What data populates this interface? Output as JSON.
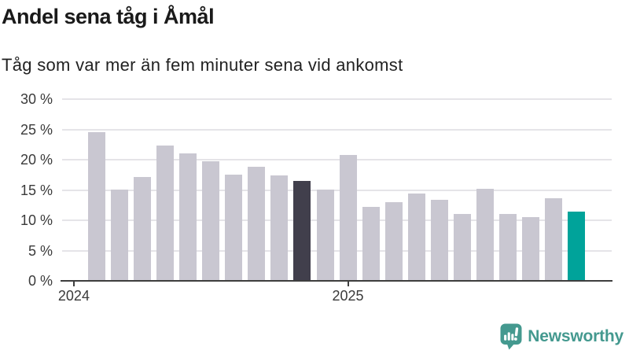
{
  "header": {
    "title": "Andel sena tåg i Åmål",
    "subtitle": "Tåg som var mer än fem minuter sena vid ankomst"
  },
  "footer": {
    "brand": "Newsworthy",
    "brand_color": "#44998F",
    "icon": "bar-chart-speech-bubble-icon"
  },
  "chart_data": {
    "type": "bar",
    "title": "Andel sena tåg i Åmål",
    "subtitle": "Tåg som var mer än fem minuter sena vid ankomst",
    "unit": "%",
    "categories": [
      "2024-02",
      "2024-03",
      "2024-04",
      "2024-05",
      "2024-06",
      "2024-07",
      "2024-08",
      "2024-09",
      "2024-10",
      "2024-11",
      "2024-12",
      "2025-01",
      "2025-02",
      "2025-03",
      "2025-04",
      "2025-05",
      "2025-06",
      "2025-07",
      "2025-08",
      "2025-09",
      "2025-10",
      "2025-11"
    ],
    "values": [
      24.5,
      15.1,
      17.2,
      22.3,
      21.1,
      19.8,
      17.5,
      18.8,
      17.4,
      16.5,
      15.1,
      20.8,
      12.2,
      13.0,
      14.4,
      13.4,
      11.0,
      15.2,
      11.0,
      10.5,
      13.6,
      11.4
    ],
    "highlights": {
      "dark": {
        "index": 9,
        "color": "#413F4C"
      },
      "latest": {
        "index": 21,
        "color": "#00A39A"
      }
    },
    "colors": {
      "bar_default": "#C9C7D1",
      "gridline": "#E5E4E8",
      "axis": "#3E3E3E",
      "tick_label": "#3A3A3A"
    },
    "y_axis": {
      "min": 0,
      "max": 30,
      "tick_step": 5,
      "tick_labels": [
        "0 %",
        "5 %",
        "10 %",
        "15 %",
        "20 %",
        "25 %",
        "30 %"
      ]
    },
    "x_axis": {
      "tick_labels": [
        "2024",
        "2025"
      ],
      "tick_bar_offsets": [
        -1,
        11
      ]
    },
    "ylim": [
      0,
      30
    ],
    "grid": "horizontal",
    "legend": "none"
  }
}
